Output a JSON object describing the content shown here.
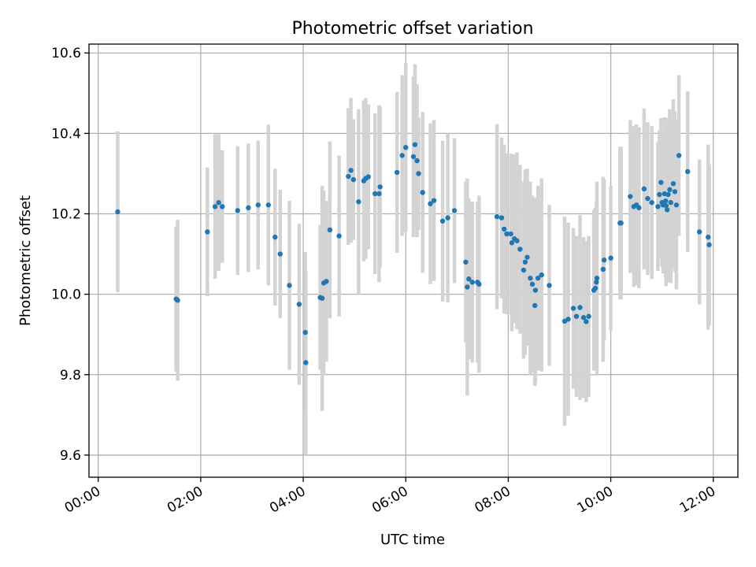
{
  "chart_data": {
    "type": "scatter",
    "title": "Photometric offset variation",
    "xlabel": "UTC time",
    "ylabel": "Photometric offset",
    "xlim": [
      -0.18,
      12.48
    ],
    "ylim": [
      9.545,
      10.622
    ],
    "x_ticks": [
      0,
      2,
      4,
      6,
      8,
      10,
      12
    ],
    "x_tick_labels": [
      "00:00",
      "02:00",
      "04:00",
      "06:00",
      "08:00",
      "10:00",
      "12:00"
    ],
    "y_ticks": [
      9.6,
      9.8,
      10.0,
      10.2,
      10.4,
      10.6
    ],
    "y_tick_labels": [
      "9.6",
      "9.8",
      "10.0",
      "10.2",
      "10.4",
      "10.6"
    ],
    "grid": true,
    "colors": {
      "point": "#1f77b4",
      "errorbar": "#d3d3d3"
    },
    "series": [
      {
        "x": [
          0.38,
          1.52,
          1.55,
          2.13,
          2.28,
          2.35,
          2.42,
          2.72,
          2.93,
          3.12,
          3.32,
          3.45,
          3.55,
          3.73,
          3.92,
          4.04,
          4.05,
          4.33,
          4.37,
          4.4,
          4.45,
          4.52,
          4.7,
          4.88,
          4.93,
          4.98,
          5.08,
          5.18,
          5.22,
          5.27,
          5.4,
          5.48,
          5.5,
          5.83,
          5.93,
          6.0,
          6.15,
          6.18,
          6.22,
          6.25,
          6.33,
          6.48,
          6.55,
          6.72,
          6.82,
          6.95,
          7.17,
          7.2,
          7.23,
          7.3,
          7.4,
          7.43,
          7.78,
          7.87,
          7.92,
          7.97,
          8.05,
          8.07,
          8.12,
          8.17,
          8.23,
          8.3,
          8.33,
          8.37,
          8.43,
          8.47,
          8.52,
          8.53,
          8.58,
          8.65,
          8.8,
          9.1,
          9.17,
          9.27,
          9.33,
          9.4,
          9.47,
          9.52,
          9.57,
          9.67,
          9.7,
          9.72,
          9.73,
          9.85,
          9.87,
          10.0,
          10.18,
          10.2,
          10.38,
          10.45,
          10.5,
          10.55,
          10.65,
          10.72,
          10.8,
          10.92,
          10.95,
          10.98,
          11.0,
          11.02,
          11.05,
          11.07,
          11.08,
          11.1,
          11.12,
          11.15,
          11.17,
          11.22,
          11.25,
          11.28,
          11.33,
          11.5,
          11.73,
          11.9,
          11.92
        ],
        "y": [
          10.205,
          9.988,
          9.985,
          10.155,
          10.218,
          10.228,
          10.218,
          10.208,
          10.215,
          10.222,
          10.222,
          10.142,
          10.1,
          10.022,
          9.975,
          9.905,
          9.83,
          9.992,
          9.99,
          10.028,
          10.032,
          10.16,
          10.145,
          10.293,
          10.308,
          10.285,
          10.23,
          10.282,
          10.288,
          10.292,
          10.25,
          10.25,
          10.267,
          10.303,
          10.345,
          10.365,
          10.342,
          10.372,
          10.332,
          10.3,
          10.253,
          10.225,
          10.233,
          10.182,
          10.19,
          10.208,
          10.08,
          10.018,
          10.038,
          10.03,
          10.03,
          10.025,
          10.193,
          10.19,
          10.162,
          10.15,
          10.15,
          10.128,
          10.138,
          10.133,
          10.112,
          10.06,
          10.08,
          10.092,
          10.04,
          10.025,
          9.972,
          10.01,
          10.04,
          10.048,
          10.022,
          9.933,
          9.938,
          9.965,
          9.945,
          9.967,
          9.942,
          9.932,
          9.945,
          10.01,
          10.015,
          10.03,
          10.04,
          10.062,
          10.085,
          10.09,
          10.177,
          10.177,
          10.243,
          10.218,
          10.222,
          10.215,
          10.262,
          10.238,
          10.228,
          10.218,
          10.248,
          10.278,
          10.228,
          10.222,
          10.25,
          10.232,
          10.22,
          10.21,
          10.248,
          10.26,
          10.228,
          10.275,
          10.255,
          10.222,
          10.345,
          10.305,
          10.155,
          10.142,
          10.123
        ],
        "err": [
          0.2,
          0.18,
          0.2,
          0.16,
          0.18,
          0.17,
          0.14,
          0.16,
          0.16,
          0.16,
          0.2,
          0.17,
          0.16,
          0.21,
          0.2,
          0.2,
          0.23,
          0.18,
          0.28,
          0.23,
          0.2,
          0.22,
          0.2,
          0.17,
          0.18,
          0.15,
          0.23,
          0.2,
          0.2,
          0.18,
          0.2,
          0.22,
          0.2,
          0.2,
          0.2,
          0.21,
          0.2,
          0.2,
          0.19,
          0.14,
          0.2,
          0.2,
          0.2,
          0.2,
          0.21,
          0.18,
          0.2,
          0.27,
          0.2,
          0.2,
          0.2,
          0.22,
          0.23,
          0.2,
          0.21,
          0.2,
          0.2,
          0.22,
          0.21,
          0.22,
          0.21,
          0.22,
          0.23,
          0.22,
          0.24,
          0.22,
          0.2,
          0.23,
          0.23,
          0.24,
          0.2,
          0.26,
          0.24,
          0.2,
          0.2,
          0.23,
          0.2,
          0.2,
          0.2,
          0.2,
          0.2,
          0.2,
          0.24,
          0.23,
          0.2,
          0.18,
          0.19,
          0.19,
          0.19,
          0.2,
          0.2,
          0.2,
          0.2,
          0.19,
          0.19,
          0.16,
          0.16,
          0.16,
          0.16,
          0.17,
          0.19,
          0.19,
          0.2,
          0.18,
          0.19,
          0.2,
          0.2,
          0.21,
          0.2,
          0.21,
          0.2,
          0.2,
          0.18,
          0.23,
          0.2
        ]
      }
    ]
  }
}
